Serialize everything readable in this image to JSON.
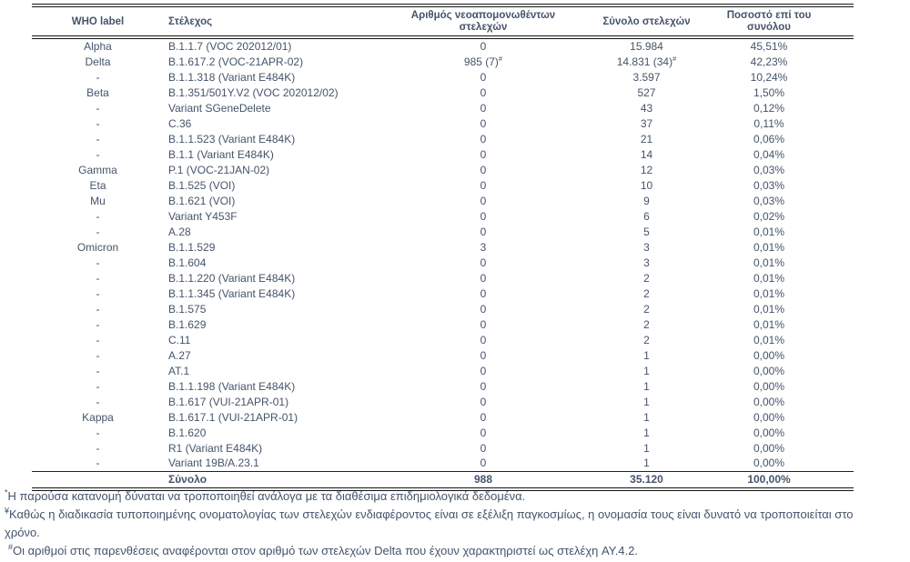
{
  "colors": {
    "text": "#44546A",
    "border": "#151515",
    "background": "#ffffff"
  },
  "table": {
    "columns": [
      {
        "label": "WHO label"
      },
      {
        "label": "Στέλεχος"
      },
      {
        "label": "Αριθμός νεοαπομονωθέντων στελεχών"
      },
      {
        "label": "Σύνολο στελεχών"
      },
      {
        "label": "Ποσοστό επί του συνόλου"
      }
    ],
    "rows": [
      {
        "who": "Alpha",
        "strain": "B.1.1.7 (VOC 202012/01)",
        "new_isolates": "0",
        "total": "15.984",
        "percent": "45,51%"
      },
      {
        "who": "Delta",
        "strain": "B.1.617.2 (VOC-21APR-02)",
        "new_isolates": "985 (7)",
        "new_isolates_sup": "#",
        "total": "14.831 (34)",
        "total_sup": "#",
        "percent": "42,23%"
      },
      {
        "who": "-",
        "strain": "B.1.1.318 (Variant E484K)",
        "new_isolates": "0",
        "total": "3.597",
        "percent": "10,24%"
      },
      {
        "who": "Beta",
        "strain": "B.1.351/501Y.V2 (VOC 202012/02)",
        "new_isolates": "0",
        "total": "527",
        "percent": "1,50%"
      },
      {
        "who": "-",
        "strain": "Variant SGeneDelete",
        "new_isolates": "0",
        "total": "43",
        "percent": "0,12%"
      },
      {
        "who": "-",
        "strain": "C.36",
        "new_isolates": "0",
        "total": "37",
        "percent": "0,11%"
      },
      {
        "who": "-",
        "strain": "B.1.1.523 (Variant E484K)",
        "new_isolates": "0",
        "total": "21",
        "percent": "0,06%"
      },
      {
        "who": "-",
        "strain": "B.1.1 (Variant E484K)",
        "new_isolates": "0",
        "total": "14",
        "percent": "0,04%"
      },
      {
        "who": "Gamma",
        "strain": "P.1 (VOC-21JAN-02)",
        "new_isolates": "0",
        "total": "12",
        "percent": "0,03%"
      },
      {
        "who": "Eta",
        "strain": "B.1.525 (VOI)",
        "new_isolates": "0",
        "total": "10",
        "percent": "0,03%"
      },
      {
        "who": "Mu",
        "strain": "B.1.621 (VOI)",
        "new_isolates": "0",
        "total": "9",
        "percent": "0,03%"
      },
      {
        "who": "-",
        "strain": "Variant Y453F",
        "new_isolates": "0",
        "total": "6",
        "percent": "0,02%"
      },
      {
        "who": "-",
        "strain": "A.28",
        "new_isolates": "0",
        "total": "5",
        "percent": "0,01%"
      },
      {
        "who": "Omicron",
        "strain": "B.1.1.529",
        "new_isolates": "3",
        "total": "3",
        "percent": "0,01%"
      },
      {
        "who": "-",
        "strain": "B.1.604",
        "new_isolates": "0",
        "total": "3",
        "percent": "0,01%"
      },
      {
        "who": "-",
        "strain": "B.1.1.220 (Variant E484K)",
        "new_isolates": "0",
        "total": "2",
        "percent": "0,01%"
      },
      {
        "who": "-",
        "strain": "B.1.1.345 (Variant E484K)",
        "new_isolates": "0",
        "total": "2",
        "percent": "0,01%"
      },
      {
        "who": "-",
        "strain": "B.1.575",
        "new_isolates": "0",
        "total": "2",
        "percent": "0,01%"
      },
      {
        "who": "-",
        "strain": "B.1.629",
        "new_isolates": "0",
        "total": "2",
        "percent": "0,01%"
      },
      {
        "who": "-",
        "strain": "C.11",
        "new_isolates": "0",
        "total": "2",
        "percent": "0,01%"
      },
      {
        "who": "-",
        "strain": "A.27",
        "new_isolates": "0",
        "total": "1",
        "percent": "0,00%"
      },
      {
        "who": "-",
        "strain": "AT.1",
        "new_isolates": "0",
        "total": "1",
        "percent": "0,00%"
      },
      {
        "who": "-",
        "strain": "B.1.1.198 (Variant E484K)",
        "new_isolates": "0",
        "total": "1",
        "percent": "0,00%"
      },
      {
        "who": "-",
        "strain": "B.1.617 (VUI-21APR-01)",
        "new_isolates": "0",
        "total": "1",
        "percent": "0,00%"
      },
      {
        "who": "Kappa",
        "strain": "B.1.617.1 (VUI-21APR-01)",
        "new_isolates": "0",
        "total": "1",
        "percent": "0,00%"
      },
      {
        "who": "-",
        "strain": "B.1.620",
        "new_isolates": "0",
        "total": "1",
        "percent": "0,00%"
      },
      {
        "who": "-",
        "strain": "R1 (Variant E484K)",
        "new_isolates": "0",
        "total": "1",
        "percent": "0,00%"
      },
      {
        "who": "-",
        "strain": "Variant 19B/A.23.1",
        "new_isolates": "0",
        "total": "1",
        "percent": "0,00%"
      }
    ],
    "total_row": {
      "who": "",
      "label": "Σύνολο",
      "new_isolates": "988",
      "total": "35.120",
      "percent": "100,00%"
    }
  },
  "footnotes": [
    {
      "marker": "*",
      "text": "Η παρούσα κατανομή δύναται να τροποποιηθεί ανάλογα με τα διαθέσιμα επιδημιολογικά δεδομένα."
    },
    {
      "marker": "¥",
      "text": "Καθώς η διαδικασία τυποποιημένης ονοματολογίας των στελεχών ενδιαφέροντος είναι σε εξέλιξη παγκοσμίως, η ονομασία τους είναι δυνατό να τροποποιείται στο χρόνο."
    },
    {
      "marker": "#",
      "text": "Οι αριθμοί στις παρενθέσεις αναφέρονται στον αριθμό των στελεχών Delta που έχουν χαρακτηριστεί ως στελέχη AY.4.2."
    }
  ]
}
